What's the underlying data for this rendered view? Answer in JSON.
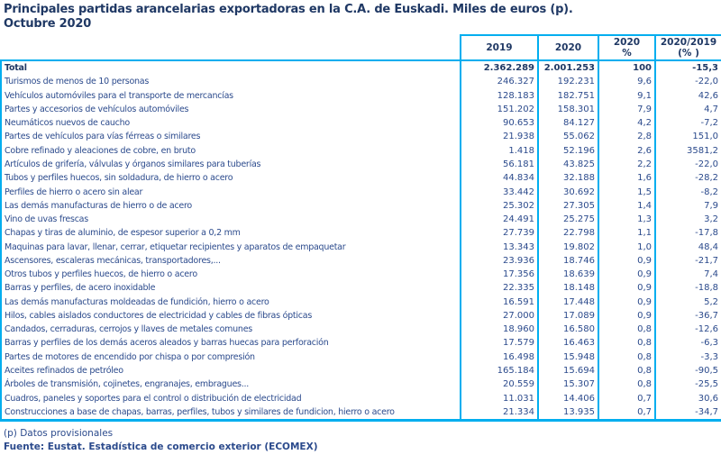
{
  "colors": {
    "table_border": "#00AEEF",
    "heading_text": "#1F3864",
    "body_text": "#2B4A8C"
  },
  "title": {
    "line1": "Principales partidas arancelarias exportadoras en la C.A. de Euskadi. Miles de euros (p).",
    "line2": "Octubre 2020"
  },
  "table": {
    "header": {
      "c1": "2019",
      "c2": "2020",
      "c3_line1": "2020",
      "c3_line2": "%",
      "c4_line1": "2020/2019",
      "c4_line2": "(% )"
    },
    "rows": [
      {
        "label": "Total",
        "y2019": "2.362.289",
        "y2020": "2.001.253",
        "share": "100",
        "growth": "-15,3",
        "bold": true
      },
      {
        "label": "Turismos de menos de  10 personas",
        "y2019": "246.327",
        "y2020": "192.231",
        "share": "9,6",
        "growth": "-22,0",
        "bold": false
      },
      {
        "label": "Vehículos automóviles para el transporte de mercancías",
        "y2019": "128.183",
        "y2020": "182.751",
        "share": "9,1",
        "growth": "42,6",
        "bold": false
      },
      {
        "label": "Partes y accesorios de vehículos automóviles",
        "y2019": "151.202",
        "y2020": "158.301",
        "share": "7,9",
        "growth": "4,7",
        "bold": false
      },
      {
        "label": "Neumáticos nuevos de caucho",
        "y2019": "90.653",
        "y2020": "84.127",
        "share": "4,2",
        "growth": "-7,2",
        "bold": false
      },
      {
        "label": "Partes de vehículos para vías férreas o similares",
        "y2019": "21.938",
        "y2020": "55.062",
        "share": "2,8",
        "growth": "151,0",
        "bold": false
      },
      {
        "label": "Cobre refinado y aleaciones de cobre, en bruto",
        "y2019": "1.418",
        "y2020": "52.196",
        "share": "2,6",
        "growth": "3581,2",
        "bold": false
      },
      {
        "label": "Artículos de grifería, válvulas y órganos similares para tuberías",
        "y2019": "56.181",
        "y2020": "43.825",
        "share": "2,2",
        "growth": "-22,0",
        "bold": false
      },
      {
        "label": "Tubos y perfiles huecos, sin soldadura, de hierro o acero",
        "y2019": "44.834",
        "y2020": "32.188",
        "share": "1,6",
        "growth": "-28,2",
        "bold": false
      },
      {
        "label": "Perfiles de hierro o acero sin alear",
        "y2019": "33.442",
        "y2020": "30.692",
        "share": "1,5",
        "growth": "-8,2",
        "bold": false
      },
      {
        "label": "Las demás manufacturas de hierro o de acero",
        "y2019": "25.302",
        "y2020": "27.305",
        "share": "1,4",
        "growth": "7,9",
        "bold": false
      },
      {
        "label": "Vino de uvas frescas",
        "y2019": "24.491",
        "y2020": "25.275",
        "share": "1,3",
        "growth": "3,2",
        "bold": false
      },
      {
        "label": "Chapas y tiras de aluminio, de espesor superior a 0,2 mm",
        "y2019": "27.739",
        "y2020": "22.798",
        "share": "1,1",
        "growth": "-17,8",
        "bold": false
      },
      {
        "label": "Maquinas para lavar, llenar, cerrar, etiquetar recipientes  y aparatos de empaquetar",
        "y2019": "13.343",
        "y2020": "19.802",
        "share": "1,0",
        "growth": "48,4",
        "bold": false
      },
      {
        "label": "Ascensores, escaleras mecánicas, transportadores,...",
        "y2019": "23.936",
        "y2020": "18.746",
        "share": "0,9",
        "growth": "-21,7",
        "bold": false
      },
      {
        "label": "Otros tubos y perfiles huecos, de hierro o acero",
        "y2019": "17.356",
        "y2020": "18.639",
        "share": "0,9",
        "growth": "7,4",
        "bold": false
      },
      {
        "label": "Barras y perfiles, de acero inoxidable",
        "y2019": "22.335",
        "y2020": "18.148",
        "share": "0,9",
        "growth": "-18,8",
        "bold": false
      },
      {
        "label": "Las demás manufacturas moldeadas de fundición, hierro o acero",
        "y2019": "16.591",
        "y2020": "17.448",
        "share": "0,9",
        "growth": "5,2",
        "bold": false
      },
      {
        "label": "Hilos, cables aislados conductores de electricidad y cables de fibras ópticas",
        "y2019": "27.000",
        "y2020": "17.089",
        "share": "0,9",
        "growth": "-36,7",
        "bold": false
      },
      {
        "label": "Candados, cerraduras, cerrojos y llaves de metales comunes",
        "y2019": "18.960",
        "y2020": "16.580",
        "share": "0,8",
        "growth": "-12,6",
        "bold": false
      },
      {
        "label": "Barras y perfiles de los demás aceros aleados y barras huecas para perforación",
        "y2019": "17.579",
        "y2020": "16.463",
        "share": "0,8",
        "growth": "-6,3",
        "bold": false
      },
      {
        "label": "Partes de motores de encendido por chispa o por compresión",
        "y2019": "16.498",
        "y2020": "15.948",
        "share": "0,8",
        "growth": "-3,3",
        "bold": false
      },
      {
        "label": "Aceites refinados de petróleo",
        "y2019": "165.184",
        "y2020": "15.694",
        "share": "0,8",
        "growth": "-90,5",
        "bold": false
      },
      {
        "label": "Árboles de transmisión, cojinetes, engranajes, embragues...",
        "y2019": "20.559",
        "y2020": "15.307",
        "share": "0,8",
        "growth": "-25,5",
        "bold": false
      },
      {
        "label": "Cuadros, paneles y soportes para el control o distribución de electricidad",
        "y2019": "11.031",
        "y2020": "14.406",
        "share": "0,7",
        "growth": "30,6",
        "bold": false
      },
      {
        "label": "Construcciones a base de chapas, barras, perfiles, tubos y similares de fundicion, hierro o acero",
        "y2019": "21.334",
        "y2020": "13.935",
        "share": "0,7",
        "growth": "-34,7",
        "bold": false
      }
    ]
  },
  "footnotes": {
    "provisional": "(p) Datos provisionales",
    "source": "Fuente: Eustat. Estadística de comercio exterior (ECOMEX)"
  }
}
